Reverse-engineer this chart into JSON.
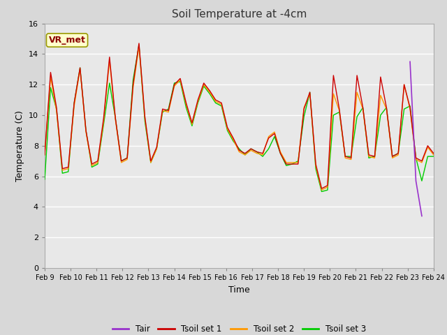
{
  "title": "Soil Temperature at -4cm",
  "xlabel": "Time",
  "ylabel": "Temperature (C)",
  "ylim": [
    0,
    16
  ],
  "yticks": [
    0,
    2,
    4,
    6,
    8,
    10,
    12,
    14,
    16
  ],
  "xtick_labels": [
    "Feb 9",
    "Feb 10",
    "Feb 11",
    "Feb 12",
    "Feb 13",
    "Feb 14",
    "Feb 15",
    "Feb 16",
    "Feb 17",
    "Feb 18",
    "Feb 19",
    "Feb 20",
    "Feb 21",
    "Feb 22",
    "Feb 23",
    "Feb 24"
  ],
  "legend_labels": [
    "Tair",
    "Tsoil set 1",
    "Tsoil set 2",
    "Tsoil set 3"
  ],
  "line_colors": [
    "#9933cc",
    "#cc0000",
    "#ff9900",
    "#00cc00"
  ],
  "annotation_text": "VR_met",
  "background_color": "#d8d8d8",
  "plot_bg_color": "#e8e8e8",
  "grid_color": "#ffffff",
  "tsoil1": [
    7.4,
    12.8,
    10.5,
    6.5,
    6.6,
    10.8,
    13.1,
    9.0,
    6.8,
    7.0,
    9.8,
    13.8,
    9.8,
    7.0,
    7.2,
    12.0,
    14.7,
    9.9,
    7.0,
    7.9,
    10.4,
    10.3,
    12.0,
    12.4,
    10.8,
    9.5,
    11.0,
    12.1,
    11.6,
    11.0,
    10.8,
    9.2,
    8.5,
    7.7,
    7.5,
    7.8,
    7.6,
    7.5,
    8.5,
    8.8,
    7.5,
    6.8,
    6.8,
    6.8,
    10.4,
    11.5,
    6.8,
    5.2,
    5.4,
    12.6,
    10.4,
    7.3,
    7.2,
    12.6,
    10.5,
    7.4,
    7.3,
    12.5,
    10.5,
    7.3,
    7.5,
    12.0,
    10.5,
    7.2,
    7.0,
    8.0,
    7.5
  ],
  "tsoil2": [
    7.4,
    12.5,
    10.3,
    6.4,
    6.5,
    10.6,
    13.0,
    8.9,
    6.7,
    6.9,
    9.6,
    13.6,
    9.7,
    6.9,
    7.1,
    11.8,
    14.5,
    9.8,
    6.9,
    7.8,
    10.3,
    10.2,
    11.9,
    12.3,
    10.7,
    9.4,
    10.9,
    12.0,
    11.5,
    10.9,
    10.7,
    9.1,
    8.4,
    7.6,
    7.4,
    7.7,
    7.5,
    7.4,
    8.6,
    8.9,
    7.6,
    6.9,
    6.9,
    6.9,
    10.5,
    11.4,
    6.7,
    5.1,
    5.3,
    11.4,
    10.3,
    7.2,
    7.1,
    11.5,
    10.4,
    7.3,
    7.2,
    11.3,
    10.4,
    7.2,
    7.4,
    12.0,
    10.4,
    7.1,
    6.9,
    7.9,
    7.4
  ],
  "tsoil3": [
    5.8,
    11.8,
    10.4,
    6.2,
    6.3,
    10.8,
    13.1,
    9.0,
    6.6,
    6.8,
    9.4,
    12.1,
    9.8,
    7.0,
    7.2,
    12.3,
    14.6,
    9.6,
    6.9,
    7.8,
    10.2,
    10.4,
    12.1,
    12.2,
    10.5,
    9.3,
    10.8,
    11.9,
    11.4,
    10.8,
    10.6,
    9.0,
    8.3,
    7.8,
    7.4,
    7.8,
    7.6,
    7.3,
    7.8,
    8.6,
    7.5,
    6.7,
    6.8,
    7.0,
    9.9,
    11.5,
    6.5,
    5.0,
    5.1,
    10.0,
    10.2,
    7.3,
    7.3,
    9.9,
    10.5,
    7.2,
    7.3,
    10.0,
    10.5,
    7.3,
    7.5,
    10.4,
    10.6,
    7.2,
    5.7,
    7.3,
    7.3
  ],
  "tair": [
    null,
    null,
    null,
    null,
    null,
    null,
    null,
    null,
    null,
    null,
    null,
    null,
    null,
    null,
    null,
    null,
    null,
    null,
    null,
    null,
    null,
    null,
    null,
    null,
    null,
    null,
    null,
    null,
    null,
    null,
    null,
    null,
    null,
    null,
    null,
    null,
    null,
    null,
    null,
    null,
    null,
    null,
    null,
    null,
    null,
    null,
    null,
    null,
    null,
    null,
    null,
    null,
    null,
    null,
    null,
    null,
    null,
    null,
    null,
    null,
    null,
    null,
    13.5,
    5.7,
    3.4,
    null,
    null
  ]
}
